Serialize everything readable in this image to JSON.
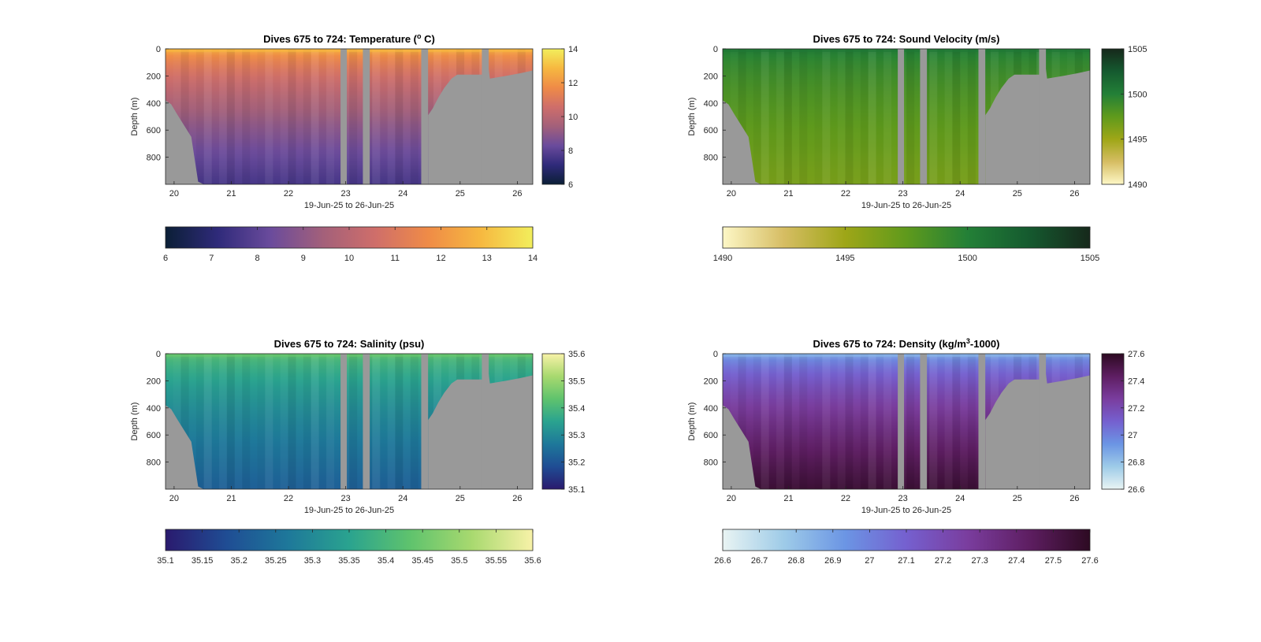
{
  "chart_data": [
    {
      "type": "heatmap",
      "id": "temperature",
      "title_main": "Dives 675 to 724: Temperature (",
      "title_sup": "o",
      "title_end": " C)",
      "xlabel": "19-Jun-25 to 26-Jun-25",
      "ylabel": "Depth (m)",
      "x_ticks": [
        "20",
        "21",
        "22",
        "23",
        "24",
        "25",
        "26"
      ],
      "y_ticks": [
        "0",
        "200",
        "400",
        "600",
        "800"
      ],
      "xlim": [
        19.85,
        26.27
      ],
      "ylim": [
        0,
        1000
      ],
      "colorbar": {
        "min": 6,
        "max": 14,
        "side_ticks": [
          "6",
          "8",
          "10",
          "12",
          "14"
        ],
        "bottom_ticks": [
          "6",
          "7",
          "8",
          "9",
          "10",
          "11",
          "12",
          "13",
          "14"
        ]
      },
      "colormap": [
        "#0b1f36",
        "#2f2a7a",
        "#6a4b9c",
        "#a3607a",
        "#cf6e6a",
        "#ef8b47",
        "#f6b840",
        "#f2ee5c"
      ],
      "profile": {
        "surface_value": 12.8,
        "deep_value": 7.6
      }
    },
    {
      "type": "heatmap",
      "id": "sound_velocity",
      "title_main": "Dives 675 to 724: Sound Velocity (m/s)",
      "title_sup": "",
      "title_end": "",
      "xlabel": "19-Jun-25 to 26-Jun-25",
      "ylabel": "Depth (m)",
      "x_ticks": [
        "20",
        "21",
        "22",
        "23",
        "24",
        "25",
        "26"
      ],
      "y_ticks": [
        "0",
        "200",
        "400",
        "600",
        "800"
      ],
      "xlim": [
        19.85,
        26.27
      ],
      "ylim": [
        0,
        1000
      ],
      "colorbar": {
        "min": 1490,
        "max": 1505,
        "side_ticks": [
          "1490",
          "1495",
          "1500",
          "1505"
        ],
        "bottom_ticks": [
          "1490",
          "1495",
          "1500",
          "1505"
        ]
      },
      "colormap": [
        "#fdf7c6",
        "#d6bd63",
        "#9ea617",
        "#5f9a1c",
        "#238037",
        "#155a2f",
        "#16281b"
      ],
      "profile": {
        "surface_value": 1500.5,
        "deep_value": 1496.5
      }
    },
    {
      "type": "heatmap",
      "id": "salinity",
      "title_main": "Dives 675 to 724: Salinity (psu)",
      "title_sup": "",
      "title_end": "",
      "xlabel": "19-Jun-25 to 26-Jun-25",
      "ylabel": "Depth (m)",
      "x_ticks": [
        "20",
        "21",
        "22",
        "23",
        "24",
        "25",
        "26"
      ],
      "y_ticks": [
        "0",
        "200",
        "400",
        "600",
        "800"
      ],
      "xlim": [
        19.85,
        26.27
      ],
      "ylim": [
        0,
        1000
      ],
      "colorbar": {
        "min": 35.1,
        "max": 35.6,
        "side_ticks": [
          "35.1",
          "35.2",
          "35.3",
          "35.4",
          "35.5",
          "35.6"
        ],
        "bottom_ticks": [
          "35.1",
          "35.15",
          "35.2",
          "35.25",
          "35.3",
          "35.35",
          "35.4",
          "35.45",
          "35.5",
          "35.55",
          "35.6"
        ]
      },
      "colormap": [
        "#2a1a6e",
        "#1f4d94",
        "#1e789a",
        "#2aa38f",
        "#5fc36d",
        "#a8d96f",
        "#f8f2a8"
      ],
      "profile": {
        "surface_value": 35.44,
        "deep_value": 35.22
      }
    },
    {
      "type": "heatmap",
      "id": "density",
      "title_main": "Dives 675 to 724: Density (kg/m",
      "title_sup": "3",
      "title_end": "-1000)",
      "xlabel": "19-Jun-25 to 26-Jun-25",
      "ylabel": "Depth (m)",
      "x_ticks": [
        "20",
        "21",
        "22",
        "23",
        "24",
        "25",
        "26"
      ],
      "y_ticks": [
        "0",
        "200",
        "400",
        "600",
        "800"
      ],
      "xlim": [
        19.85,
        26.27
      ],
      "ylim": [
        0,
        1000
      ],
      "colorbar": {
        "min": 26.6,
        "max": 27.6,
        "side_ticks": [
          "26.6",
          "26.8",
          "27",
          "27.2",
          "27.4",
          "27.6"
        ],
        "bottom_ticks": [
          "26.6",
          "26.7",
          "26.8",
          "26.9",
          "27",
          "27.1",
          "27.2",
          "27.3",
          "27.4",
          "27.5",
          "27.6"
        ]
      },
      "colormap": [
        "#e9f4f3",
        "#9ecbe8",
        "#6b95e4",
        "#7560cf",
        "#7a3d9e",
        "#5e1e62",
        "#2d0a22"
      ],
      "profile": {
        "surface_value": 26.85,
        "deep_value": 27.55
      }
    }
  ],
  "mask": {
    "gap_color": "#999999",
    "data_gaps": [
      [
        22.91,
        23.02
      ],
      [
        23.3,
        23.42
      ],
      [
        24.32,
        24.44
      ],
      [
        25.38,
        25.5
      ]
    ],
    "seafloor": [
      [
        19.85,
        380
      ],
      [
        19.95,
        410
      ],
      [
        20.05,
        480
      ],
      [
        20.3,
        650
      ],
      [
        20.42,
        980
      ],
      [
        20.52,
        1000
      ],
      [
        24.32,
        1000
      ],
      [
        24.44,
        1000
      ],
      [
        24.44,
        490
      ],
      [
        24.52,
        440
      ],
      [
        24.62,
        360
      ],
      [
        24.72,
        290
      ],
      [
        24.85,
        220
      ],
      [
        24.95,
        190
      ],
      [
        25.38,
        190
      ],
      [
        25.5,
        150
      ],
      [
        25.52,
        220
      ],
      [
        25.8,
        200
      ],
      [
        26.05,
        180
      ],
      [
        26.27,
        160
      ]
    ]
  }
}
